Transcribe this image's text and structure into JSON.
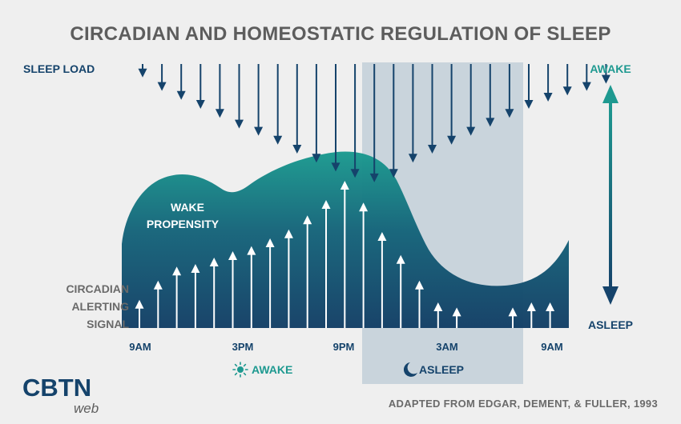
{
  "title": "CIRCADIAN AND HOMEOSTATIC REGULATION OF  SLEEP",
  "labels": {
    "sleep_load": "SLEEP LOAD",
    "wake_propensity_line1": "WAKE",
    "wake_propensity_line2": "PROPENSITY",
    "circadian_line1": "CIRCADIAN",
    "circadian_line2": "ALERTING",
    "circadian_line3": "SIGNAL",
    "scale_top": "AWAKE",
    "scale_bottom": "ASLEEP"
  },
  "time_axis": {
    "ticks": [
      "9AM",
      "3PM",
      "9PM",
      "3AM",
      "9AM"
    ]
  },
  "legend": {
    "awake": "AWAKE",
    "asleep": "ASLEEP"
  },
  "credit": "ADAPTED FROM  EDGAR, DEMENT, & FULLER, 1993",
  "logo": {
    "main": "CBTN",
    "sub": "web"
  },
  "colors": {
    "background": "#efefef",
    "navy": "#15436b",
    "teal": "#1e9990",
    "sleep_shade": "#c9d4dc",
    "text_grey": "#5d5d5d"
  },
  "chart_data": {
    "type": "diagram",
    "description_units": "relative strength 0-1",
    "sleep_load_arrow_lengths": [
      0.15,
      0.3,
      0.4,
      0.5,
      0.6,
      0.72,
      0.8,
      0.9,
      1.0,
      1.1,
      1.2,
      1.27,
      1.32,
      1.27,
      1.1,
      1.0,
      0.9,
      0.8,
      0.7,
      0.6,
      0.5,
      0.42,
      0.35,
      0.3,
      0.22
    ],
    "circadian_arrow_heights": [
      0.22,
      0.37,
      0.48,
      0.5,
      0.55,
      0.6,
      0.64,
      0.7,
      0.77,
      0.88,
      1.0,
      1.15,
      0.98,
      0.75,
      0.57,
      0.37,
      0.2,
      0.16,
      null,
      null,
      0.16,
      0.2,
      0.2
    ],
    "sleep_window": {
      "start": "10PM",
      "end": "7AM"
    }
  }
}
